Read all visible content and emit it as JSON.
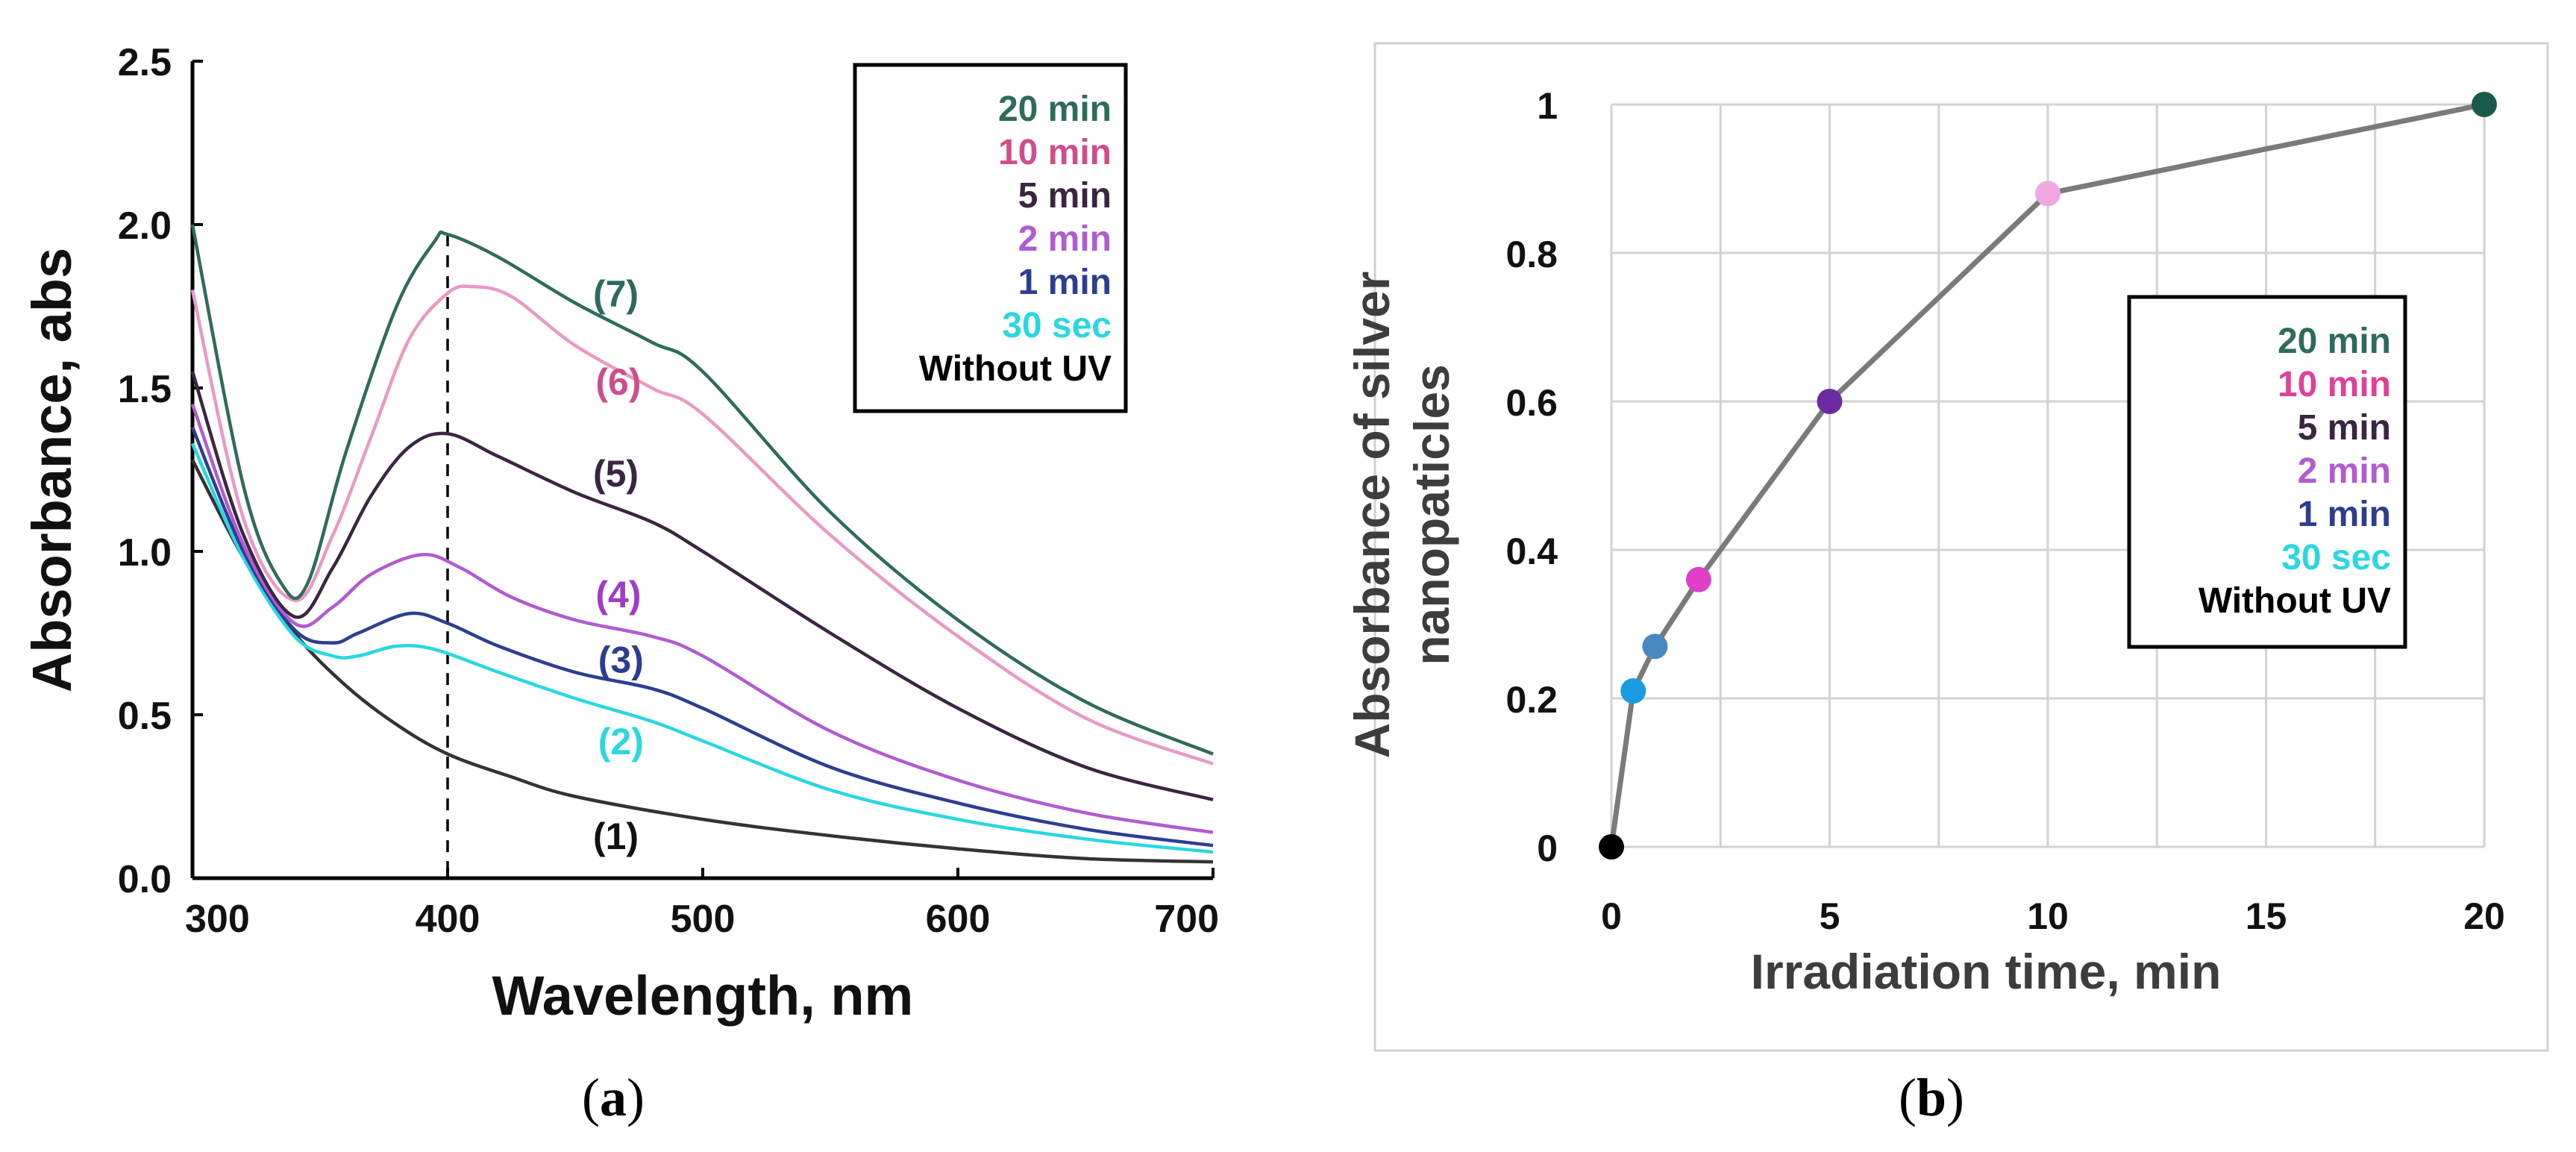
{
  "chart_data": [
    {
      "type": "line",
      "panel_caption": "a",
      "xlabel": "Wavelength, nm",
      "ylabel": "Absorbance, abs",
      "xlim": [
        300,
        700
      ],
      "ylim": [
        0,
        2.5
      ],
      "xticks": [
        "300",
        "400",
        "500",
        "600",
        "700"
      ],
      "yticks": [
        "0.0",
        "0.5",
        "1.0",
        "1.5",
        "2.0",
        "2.5"
      ],
      "grid": false,
      "reference_line_x": 400,
      "legend": [
        {
          "label": "20 min",
          "color": "#2f6b5d"
        },
        {
          "label": "10 min",
          "color": "#d04d8b"
        },
        {
          "label": "5 min",
          "color": "#3a2640"
        },
        {
          "label": "2 min",
          "color": "#b05cd0"
        },
        {
          "label": "1 min",
          "color": "#2e3d8f"
        },
        {
          "label": "30 sec",
          "color": "#2ad7df"
        },
        {
          "label": "Without UV",
          "color": "#000000"
        }
      ],
      "legend_position": "top-right",
      "series": [
        {
          "name": "Without UV",
          "tag": "(1)",
          "color": "#333333",
          "tag_color": "#111111",
          "tag_at": [
            457,
            0.13
          ],
          "x": [
            300,
            320,
            340,
            360,
            380,
            400,
            425,
            450,
            500,
            550,
            600,
            650,
            700
          ],
          "y": [
            1.28,
            0.98,
            0.75,
            0.59,
            0.47,
            0.38,
            0.31,
            0.25,
            0.18,
            0.13,
            0.09,
            0.06,
            0.05
          ]
        },
        {
          "name": "30 sec",
          "tag": "(2)",
          "color": "#2ad7df",
          "tag_color": "#2ad7df",
          "tag_at": [
            459,
            0.42
          ],
          "x": [
            300,
            320,
            340,
            355,
            365,
            380,
            395,
            420,
            450,
            480,
            500,
            550,
            600,
            650,
            700
          ],
          "y": [
            1.33,
            0.98,
            0.74,
            0.68,
            0.68,
            0.71,
            0.7,
            0.63,
            0.55,
            0.48,
            0.42,
            0.27,
            0.18,
            0.12,
            0.08
          ]
        },
        {
          "name": "1 min",
          "tag": "(3)",
          "color": "#2e3d8f",
          "tag_color": "#2e3d8f",
          "tag_at": [
            459,
            0.67
          ],
          "x": [
            300,
            320,
            340,
            355,
            365,
            385,
            400,
            420,
            450,
            480,
            500,
            550,
            600,
            650,
            700
          ],
          "y": [
            1.38,
            1.0,
            0.76,
            0.72,
            0.75,
            0.81,
            0.78,
            0.71,
            0.63,
            0.58,
            0.52,
            0.34,
            0.23,
            0.15,
            0.1
          ]
        },
        {
          "name": "2 min",
          "tag": "(4)",
          "color": "#b05cd0",
          "tag_color": "#a13cc7",
          "tag_at": [
            458,
            0.87
          ],
          "x": [
            300,
            320,
            340,
            355,
            370,
            390,
            405,
            425,
            450,
            480,
            500,
            550,
            600,
            650,
            700
          ],
          "y": [
            1.45,
            1.02,
            0.78,
            0.83,
            0.93,
            0.99,
            0.95,
            0.86,
            0.79,
            0.74,
            0.68,
            0.45,
            0.3,
            0.2,
            0.14
          ]
        },
        {
          "name": "5 min",
          "tag": "(5)",
          "color": "#3a2640",
          "tag_color": "#3a2640",
          "tag_at": [
            457,
            1.24
          ],
          "x": [
            300,
            320,
            340,
            355,
            370,
            385,
            400,
            420,
            450,
            480,
            500,
            550,
            600,
            650,
            700
          ],
          "y": [
            1.55,
            1.05,
            0.8,
            0.95,
            1.17,
            1.32,
            1.36,
            1.29,
            1.18,
            1.09,
            1.0,
            0.75,
            0.52,
            0.34,
            0.24
          ]
        },
        {
          "name": "10 min",
          "tag": "(6)",
          "color": "#e79ac5",
          "tag_color": "#d04d8b",
          "tag_at": [
            458,
            1.52
          ],
          "x": [
            300,
            320,
            340,
            355,
            370,
            385,
            400,
            410,
            425,
            450,
            480,
            500,
            550,
            600,
            650,
            700
          ],
          "y": [
            1.8,
            1.1,
            0.85,
            1.05,
            1.35,
            1.65,
            1.79,
            1.81,
            1.78,
            1.63,
            1.5,
            1.42,
            1.05,
            0.74,
            0.49,
            0.35
          ]
        },
        {
          "name": "20 min",
          "tag": "(7)",
          "color": "#2f6b5d",
          "tag_color": "#2f6b5d",
          "tag_at": [
            457,
            1.79
          ],
          "x": [
            300,
            320,
            335,
            345,
            360,
            380,
            395,
            400,
            420,
            450,
            480,
            500,
            550,
            600,
            650,
            700
          ],
          "y": [
            2.0,
            1.2,
            0.9,
            0.9,
            1.3,
            1.75,
            1.95,
            1.97,
            1.9,
            1.76,
            1.64,
            1.55,
            1.12,
            0.79,
            0.54,
            0.38
          ]
        }
      ]
    },
    {
      "type": "line",
      "panel_caption": "b",
      "xlabel": "Irradiation time, min",
      "ylabel": [
        "Absorbance of silver",
        "nanopaticles"
      ],
      "xlim": [
        0,
        20
      ],
      "ylim": [
        0,
        1
      ],
      "xticks": [
        "0",
        "5",
        "10",
        "15",
        "20"
      ],
      "yticks": [
        "0",
        "0.2",
        "0.4",
        "0.6",
        "0.8",
        "1"
      ],
      "grid": true,
      "line_color": "#7a7a7a",
      "legend": [
        {
          "label": "20 min",
          "color": "#2f6b5d"
        },
        {
          "label": "10 min",
          "color": "#e0409a"
        },
        {
          "label": "5 min",
          "color": "#3a2640"
        },
        {
          "label": "2 min",
          "color": "#b05cd0"
        },
        {
          "label": "1 min",
          "color": "#2e3d8f"
        },
        {
          "label": "30 sec",
          "color": "#2ad7df"
        },
        {
          "label": "Without UV",
          "color": "#000000"
        }
      ],
      "legend_position": "right",
      "points": [
        {
          "label": "Without UV",
          "x": 0,
          "y": 0,
          "color": "#000000"
        },
        {
          "label": "30 sec",
          "x": 0.5,
          "y": 0.21,
          "color": "#1a9be0"
        },
        {
          "label": "1 min",
          "x": 1,
          "y": 0.27,
          "color": "#4a88bf"
        },
        {
          "label": "2 min",
          "x": 2,
          "y": 0.36,
          "color": "#e040c8"
        },
        {
          "label": "5 min",
          "x": 5,
          "y": 0.6,
          "color": "#6a2aa0"
        },
        {
          "label": "10 min",
          "x": 10,
          "y": 0.88,
          "color": "#f0a8e0"
        },
        {
          "label": "20 min",
          "x": 20,
          "y": 1.0,
          "color": "#1a5a48"
        }
      ]
    }
  ],
  "captions": {
    "a": "a",
    "b": "b"
  }
}
